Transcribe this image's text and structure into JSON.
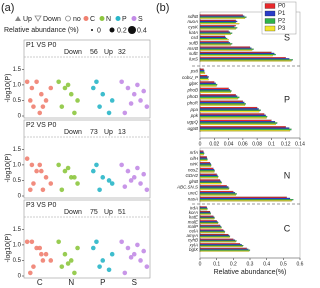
{
  "chart_data": [
    {
      "type": "scatter",
      "label": "(a)",
      "legend": {
        "shapes": [
          "Up",
          "Down",
          "no"
        ],
        "size_title": "Relative abundance (%)",
        "sizes": [
          0,
          0.2,
          0.4
        ]
      },
      "categories": [
        "C",
        "N",
        "P",
        "S"
      ],
      "xlim": [
        0,
        4
      ],
      "ylim": [
        0,
        1.8
      ],
      "yticks": [
        0,
        0.5,
        {
          "value": 1,
          "label": "1.0"
        },
        1.5
      ],
      "ylabel": "-log10(P)",
      "series": [
        {
          "name": "C",
          "color": "#f08070"
        },
        {
          "name": "N",
          "color": "#8dc63f"
        },
        {
          "name": "P",
          "color": "#29b6c8"
        },
        {
          "name": "S",
          "color": "#c28be6"
        }
      ],
      "panels": [
        {
          "title": "P1 VS P0",
          "down_label": "Down",
          "down": 56,
          "up_label": "Up",
          "up": 32,
          "points": [
            {
              "x": [
                0.1,
                0.25,
                0.4,
                0.55,
                0.7,
                0.85,
                0.3,
                0.6,
                0.2,
                0.5
              ],
              "values": [
                1.1,
                0.9,
                1.1,
                0.7,
                0.5,
                0.9,
                0.3,
                0.3,
                0.5,
                0.1
              ]
            },
            {
              "x": [
                1.1,
                1.3,
                1.5,
                1.7,
                1.2,
                1.6,
                1.4
              ],
              "values": [
                1.1,
                0.9,
                0.7,
                0.5,
                0.3,
                0.1,
                1.0
              ]
            },
            {
              "x": [
                2.2,
                2.5,
                2.8,
                2.4,
                2.7,
                2.3
              ],
              "values": [
                0.9,
                0.7,
                0.5,
                0.3,
                0.1,
                1.1
              ]
            },
            {
              "x": [
                3.1,
                3.3,
                3.5,
                3.7,
                3.9,
                3.2,
                3.6,
                3.4,
                3.8
              ],
              "values": [
                1.1,
                0.9,
                0.7,
                0.5,
                0.3,
                0.1,
                1.0,
                0.4,
                0.8
              ]
            }
          ]
        },
        {
          "title": "P2 VS P0",
          "down_label": "Down",
          "down": 73,
          "up_label": "Up",
          "up": 13,
          "points": [
            {
              "x": [
                0.1,
                0.25,
                0.4,
                0.55,
                0.7,
                0.85,
                0.3,
                0.6,
                0.2,
                0.5
              ],
              "values": [
                1.2,
                1.0,
                0.8,
                0.8,
                0.6,
                0.4,
                0.4,
                0.2,
                0.2,
                1.0
              ]
            },
            {
              "x": [
                1.1,
                1.3,
                1.5,
                1.7,
                1.2,
                1.6,
                1.4
              ],
              "values": [
                1.0,
                0.8,
                0.6,
                0.4,
                0.2,
                0.6,
                0.9
              ]
            },
            {
              "x": [
                2.2,
                2.5,
                2.8,
                2.4,
                2.7,
                2.3
              ],
              "values": [
                0.8,
                0.6,
                0.4,
                0.2,
                0.5,
                1.0
              ]
            },
            {
              "x": [
                3.1,
                3.3,
                3.5,
                3.7,
                3.9,
                3.2,
                3.6,
                3.4,
                3.8
              ],
              "values": [
                1.0,
                0.8,
                0.6,
                0.4,
                0.2,
                0.3,
                0.9,
                0.5,
                0.7
              ]
            }
          ]
        },
        {
          "title": "P3 VS P0",
          "down_label": "Down",
          "down": 75,
          "up_label": "Up",
          "up": 51,
          "points": [
            {
              "x": [
                0.1,
                0.25,
                0.4,
                0.55,
                0.7,
                0.85,
                0.3,
                0.6,
                0.2,
                0.5
              ],
              "values": [
                1.1,
                1.1,
                0.9,
                0.7,
                0.7,
                0.5,
                0.3,
                0.5,
                0.1,
                0.9
              ]
            },
            {
              "x": [
                1.1,
                1.3,
                1.5,
                1.7,
                1.2,
                1.6,
                1.4
              ],
              "values": [
                1.1,
                0.7,
                0.5,
                0.9,
                0.3,
                0.1,
                0.4
              ]
            },
            {
              "x": [
                2.2,
                2.5,
                2.8,
                2.4,
                2.7,
                2.3
              ],
              "values": [
                0.9,
                0.5,
                0.7,
                0.3,
                0.2,
                1.1
              ]
            },
            {
              "x": [
                3.1,
                3.3,
                3.5,
                3.7,
                3.9,
                3.2,
                3.6,
                3.4,
                3.8
              ],
              "values": [
                1.1,
                0.9,
                0.7,
                0.5,
                0.3,
                0.1,
                1.0,
                0.6,
                0.8
              ]
            }
          ]
        }
      ]
    },
    {
      "type": "bar",
      "label": "(b)",
      "orientation": "horizontal",
      "xlabel": "Relative abundance(%)",
      "series": [
        {
          "name": "P0",
          "color": "#e8282b"
        },
        {
          "name": "P1",
          "color": "#2a3cc8"
        },
        {
          "name": "P2",
          "color": "#2fb34a"
        },
        {
          "name": "P3",
          "color": "#f2e52b"
        }
      ],
      "axes": [
        {
          "xlim": [
            0,
            0.14
          ],
          "xticks": [
            0,
            0.02,
            0.04,
            0.06,
            0.08,
            0.1,
            0.12,
            0.14
          ]
        },
        {
          "xlim": [
            0,
            0.6
          ],
          "xticks": [
            0,
            0.1,
            0.2,
            0.3,
            0.4,
            0.5,
            0.6
          ]
        }
      ],
      "groups": [
        {
          "name": "S",
          "axis": 0,
          "categories": [
            "sdhB",
            "nuoA",
            "cysK",
            "katA",
            "csd",
            "sufB",
            "msrB",
            "sufE",
            "luxS"
          ],
          "values": [
            [
              0.06,
              0.05,
              0.05,
              0.04,
              0.035,
              0.04,
              0.07,
              0.1,
              0.12
            ],
            [
              0.062,
              0.052,
              0.048,
              0.042,
              0.036,
              0.042,
              0.072,
              0.104,
              0.125
            ],
            [
              0.065,
              0.05,
              0.052,
              0.045,
              0.038,
              0.045,
              0.075,
              0.106,
              0.13
            ],
            [
              0.063,
              0.055,
              0.05,
              0.043,
              0.04,
              0.043,
              0.073,
              0.102,
              0.128
            ]
          ]
        },
        {
          "name": "P",
          "axis": 0,
          "categories": [
            "pstI",
            "cobU_P",
            "glpK",
            "phoB",
            "phoD",
            "phoR",
            "ppa",
            "ppk",
            "ugpQ",
            "ugpB"
          ],
          "values": [
            [
              0.005,
              0.01,
              0.02,
              0.04,
              0.05,
              0.06,
              0.08,
              0.09,
              0.1,
              0.12
            ],
            [
              0.006,
              0.012,
              0.022,
              0.042,
              0.052,
              0.062,
              0.082,
              0.092,
              0.105,
              0.125
            ],
            [
              0.006,
              0.011,
              0.024,
              0.044,
              0.055,
              0.064,
              0.085,
              0.094,
              0.108,
              0.128
            ],
            [
              0.007,
              0.012,
              0.023,
              0.043,
              0.053,
              0.063,
              0.083,
              0.093,
              0.106,
              0.126
            ]
          ]
        },
        {
          "name": "N",
          "axis": 1,
          "categories": [
            "nrfA",
            "nifH",
            "nirK",
            "nosZ",
            "GDH2",
            "glnB",
            "ABC.SN.S",
            "ureC",
            "nasA"
          ],
          "values": [
            [
              0.02,
              0.04,
              0.06,
              0.08,
              0.1,
              0.12,
              0.16,
              0.2,
              0.52
            ],
            [
              0.022,
              0.042,
              0.065,
              0.085,
              0.105,
              0.125,
              0.17,
              0.21,
              0.54
            ],
            [
              0.025,
              0.045,
              0.068,
              0.088,
              0.11,
              0.13,
              0.175,
              0.22,
              0.56
            ],
            [
              0.023,
              0.043,
              0.066,
              0.086,
              0.108,
              0.128,
              0.172,
              0.215,
              0.55
            ]
          ]
        },
        {
          "name": "C",
          "axis": 1,
          "categories": [
            "irdA",
            "korA",
            "katE",
            "malE",
            "malP",
            "celA",
            "amyA",
            "cyhB",
            "xylA",
            "bglX"
          ],
          "values": [
            [
              0.04,
              0.06,
              0.08,
              0.1,
              0.12,
              0.14,
              0.17,
              0.2,
              0.24,
              0.28
            ],
            [
              0.042,
              0.062,
              0.085,
              0.105,
              0.125,
              0.145,
              0.175,
              0.21,
              0.25,
              0.29
            ],
            [
              0.045,
              0.065,
              0.088,
              0.11,
              0.13,
              0.15,
              0.18,
              0.22,
              0.26,
              0.3
            ],
            [
              0.043,
              0.063,
              0.086,
              0.108,
              0.128,
              0.148,
              0.178,
              0.215,
              0.255,
              0.295
            ]
          ]
        }
      ]
    }
  ]
}
